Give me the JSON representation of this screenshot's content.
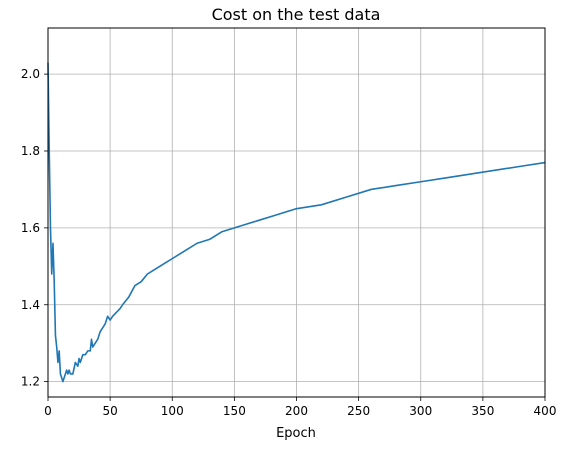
{
  "chart_data": {
    "type": "line",
    "title": "Cost on the test data",
    "xlabel": "Epoch",
    "ylabel": "",
    "xlim": [
      0,
      400
    ],
    "ylim": [
      1.16,
      2.12
    ],
    "grid": true,
    "xticks": [
      0,
      50,
      100,
      150,
      200,
      250,
      300,
      350,
      400
    ],
    "xtick_labels": [
      "0",
      "50",
      "100",
      "150",
      "200",
      "250",
      "300",
      "350",
      "400"
    ],
    "yticks": [
      1.2,
      1.4,
      1.6,
      1.8,
      2.0
    ],
    "ytick_labels": [
      "1.2",
      "1.4",
      "1.6",
      "1.8",
      "2.0"
    ],
    "line_color": "#1f77b4",
    "series": [
      {
        "x": [
          0,
          1,
          2,
          3,
          4,
          5,
          6,
          7,
          8,
          9,
          10,
          11,
          12,
          13,
          14,
          15,
          16,
          17,
          18,
          19,
          20,
          22,
          24,
          25,
          26,
          28,
          30,
          32,
          34,
          35,
          36,
          38,
          40,
          42,
          44,
          46,
          48,
          50,
          52,
          55,
          58,
          60,
          65,
          70,
          75,
          80,
          85,
          90,
          95,
          100,
          110,
          120,
          130,
          140,
          150,
          160,
          170,
          180,
          190,
          200,
          220,
          240,
          260,
          280,
          300,
          320,
          340,
          360,
          380,
          400
        ],
        "y": [
          2.03,
          1.8,
          1.6,
          1.48,
          1.56,
          1.46,
          1.32,
          1.29,
          1.25,
          1.28,
          1.22,
          1.21,
          1.2,
          1.21,
          1.22,
          1.23,
          1.22,
          1.23,
          1.22,
          1.22,
          1.22,
          1.25,
          1.24,
          1.26,
          1.25,
          1.27,
          1.27,
          1.28,
          1.28,
          1.31,
          1.29,
          1.3,
          1.31,
          1.33,
          1.34,
          1.35,
          1.37,
          1.36,
          1.37,
          1.38,
          1.39,
          1.4,
          1.42,
          1.45,
          1.46,
          1.48,
          1.49,
          1.5,
          1.51,
          1.52,
          1.54,
          1.56,
          1.57,
          1.59,
          1.6,
          1.61,
          1.62,
          1.63,
          1.64,
          1.65,
          1.66,
          1.68,
          1.7,
          1.71,
          1.72,
          1.73,
          1.74,
          1.75,
          1.76,
          1.77
        ]
      }
    ]
  }
}
